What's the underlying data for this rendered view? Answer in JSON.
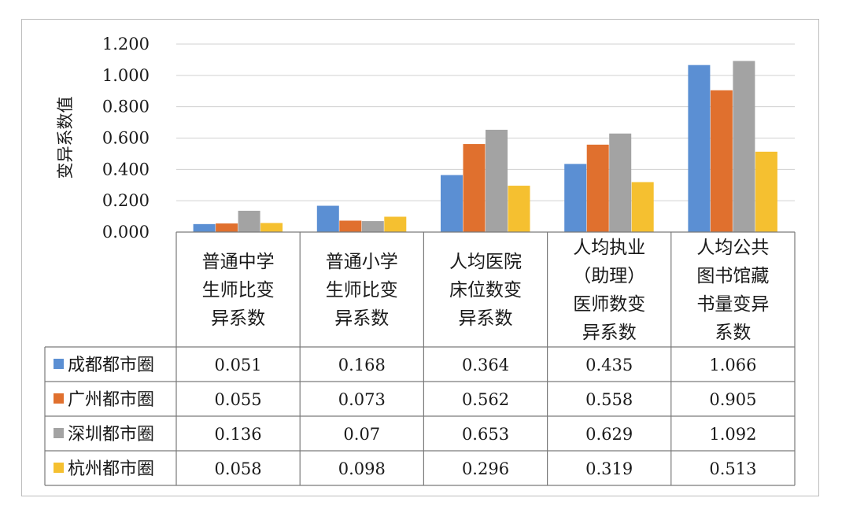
{
  "chart_data": {
    "type": "bar",
    "ylabel": "变异系数值",
    "ylim": [
      0,
      1.2
    ],
    "yticks": [
      "0.000",
      "0.200",
      "0.400",
      "0.600",
      "0.800",
      "1.000",
      "1.200"
    ],
    "categories": [
      [
        "普通中学",
        "生师比变",
        "异系数"
      ],
      [
        "普通小学",
        "生师比变",
        "异系数"
      ],
      [
        "人均医院",
        "床位数变",
        "异系数"
      ],
      [
        "人均执业",
        "（助理）",
        "医师数变",
        "异系数"
      ],
      [
        "人均公共",
        "图书馆藏",
        "书量变异",
        "系数"
      ]
    ],
    "series": [
      {
        "name": "成都都市圈",
        "color": "#5b8fd3",
        "values": [
          0.051,
          0.168,
          0.364,
          0.435,
          1.066
        ],
        "labels": [
          "0.051",
          "0.168",
          "0.364",
          "0.435",
          "1.066"
        ]
      },
      {
        "name": "广州都市圈",
        "color": "#e0702e",
        "values": [
          0.055,
          0.073,
          0.562,
          0.558,
          0.905
        ],
        "labels": [
          "0.055",
          "0.073",
          "0.562",
          "0.558",
          "0.905"
        ]
      },
      {
        "name": "深圳都市圈",
        "color": "#a3a3a3",
        "values": [
          0.136,
          0.07,
          0.653,
          0.629,
          1.092
        ],
        "labels": [
          "0.136",
          "0.07",
          "0.653",
          "0.629",
          "1.092"
        ]
      },
      {
        "name": "杭州都市圈",
        "color": "#f5c030",
        "values": [
          0.058,
          0.098,
          0.296,
          0.319,
          0.513
        ],
        "labels": [
          "0.058",
          "0.098",
          "0.296",
          "0.319",
          "0.513"
        ]
      }
    ],
    "grid": true,
    "legend": "table-left"
  }
}
